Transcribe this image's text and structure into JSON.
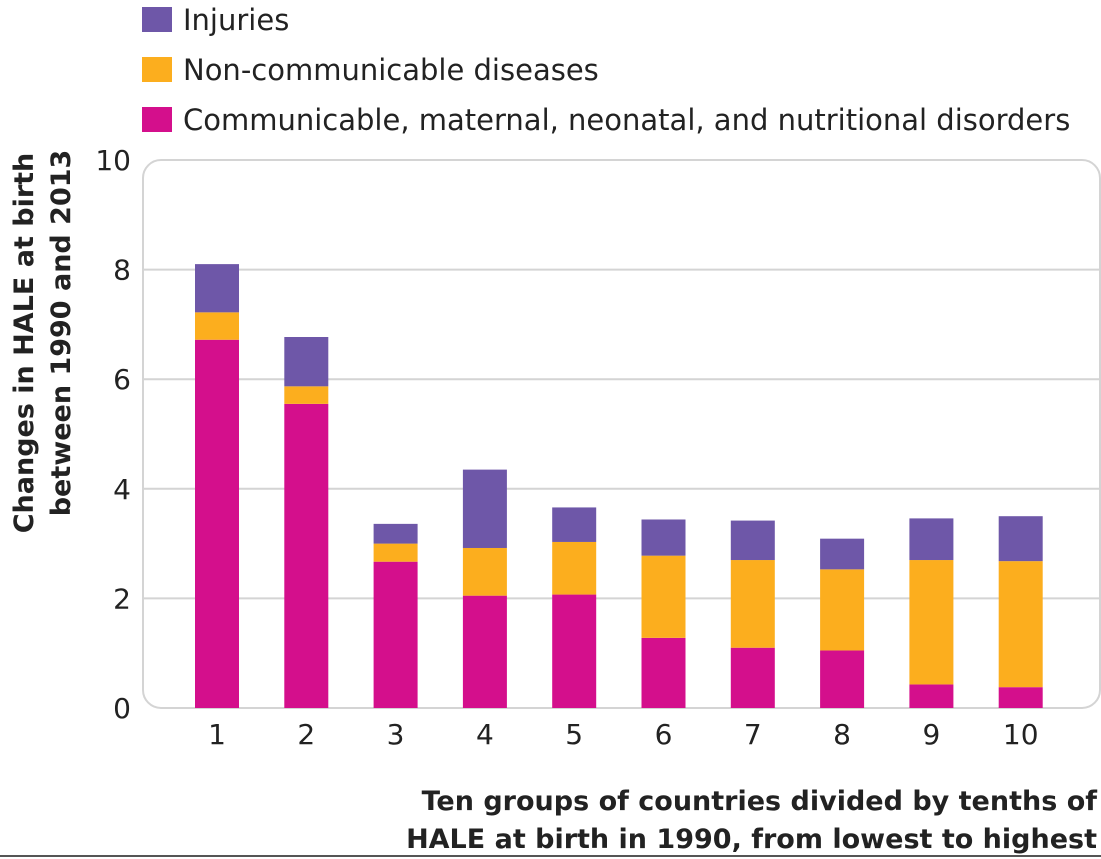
{
  "chart_data": {
    "type": "bar",
    "stacked": true,
    "categories": [
      "1",
      "2",
      "3",
      "4",
      "5",
      "6",
      "7",
      "8",
      "9",
      "10"
    ],
    "series": [
      {
        "name": "Communicable, maternal, neonatal, and nutritional disorders",
        "color": "#d40f8c",
        "values": [
          6.72,
          5.55,
          2.67,
          2.05,
          2.07,
          1.28,
          1.1,
          1.05,
          0.43,
          0.38
        ]
      },
      {
        "name": "Non-communicable diseases",
        "color": "#fcae1e",
        "values": [
          0.5,
          0.32,
          0.33,
          0.87,
          0.96,
          1.5,
          1.6,
          1.48,
          2.27,
          2.3
        ]
      },
      {
        "name": "Injuries",
        "color": "#6e57a8",
        "values": [
          0.88,
          0.9,
          0.36,
          1.43,
          0.63,
          0.66,
          0.72,
          0.56,
          0.76,
          0.82
        ]
      }
    ],
    "legend_order": [
      "Injuries",
      "Non-communicable diseases",
      "Communicable, maternal, neonatal, and nutritional disorders"
    ],
    "ylabel_lines": [
      "Changes in HALE at birth",
      "between 1990 and 2013"
    ],
    "xlabel_lines": [
      "Ten groups of countries divided by tenths of",
      "HALE at birth in 1990, from lowest to highest"
    ],
    "ylim": [
      0,
      10
    ],
    "yticks": [
      "0",
      "2",
      "4",
      "6",
      "8",
      "10"
    ],
    "grid": true,
    "legend_position": "top-left"
  }
}
